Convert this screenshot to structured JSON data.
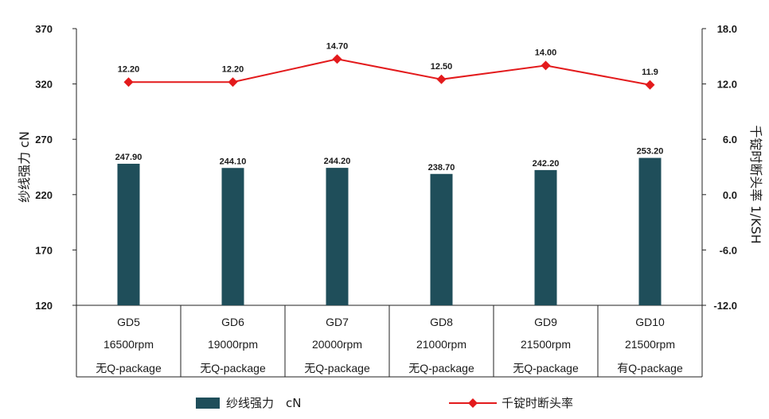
{
  "chart_data": {
    "type": "bar",
    "categories": [
      [
        "GD5",
        "16500rpm",
        "无Q-package"
      ],
      [
        "GD6",
        "19000rpm",
        "无Q-package"
      ],
      [
        "GD7",
        "20000rpm",
        "无Q-package"
      ],
      [
        "GD8",
        "21000rpm",
        "无Q-package"
      ],
      [
        "GD9",
        "21500rpm",
        "无Q-package"
      ],
      [
        "GD10",
        "21500rpm",
        "有Q-package"
      ]
    ],
    "series": [
      {
        "name": "纱线强力　cN",
        "type": "bar",
        "axis": "left",
        "color": "#1f4e5a",
        "values": [
          247.9,
          244.1,
          244.2,
          238.7,
          242.2,
          253.2
        ],
        "labels": [
          "247.90",
          "244.10",
          "244.20",
          "238.70",
          "242.20",
          "253.20"
        ]
      },
      {
        "name": "千锭时断头率",
        "type": "line",
        "axis": "right",
        "color": "#e31a1c",
        "values": [
          12.2,
          12.2,
          14.7,
          12.5,
          14.0,
          11.9
        ],
        "labels": [
          "12.20",
          "12.20",
          "14.70",
          "12.50",
          "14.00",
          "11.9"
        ]
      }
    ],
    "left_axis": {
      "label": "纱线强力  cN",
      "ylim": [
        120,
        370
      ],
      "ticks": [
        "120",
        "170",
        "220",
        "270",
        "320",
        "370"
      ]
    },
    "right_axis": {
      "label": "千锭时断头率  1/KSH",
      "ylim": [
        -12,
        18
      ],
      "ticks": [
        "-12.0",
        "-6.0",
        "0.0",
        "6.0",
        "12.0",
        "18.0"
      ]
    },
    "grid": false,
    "legend": "bottom"
  }
}
